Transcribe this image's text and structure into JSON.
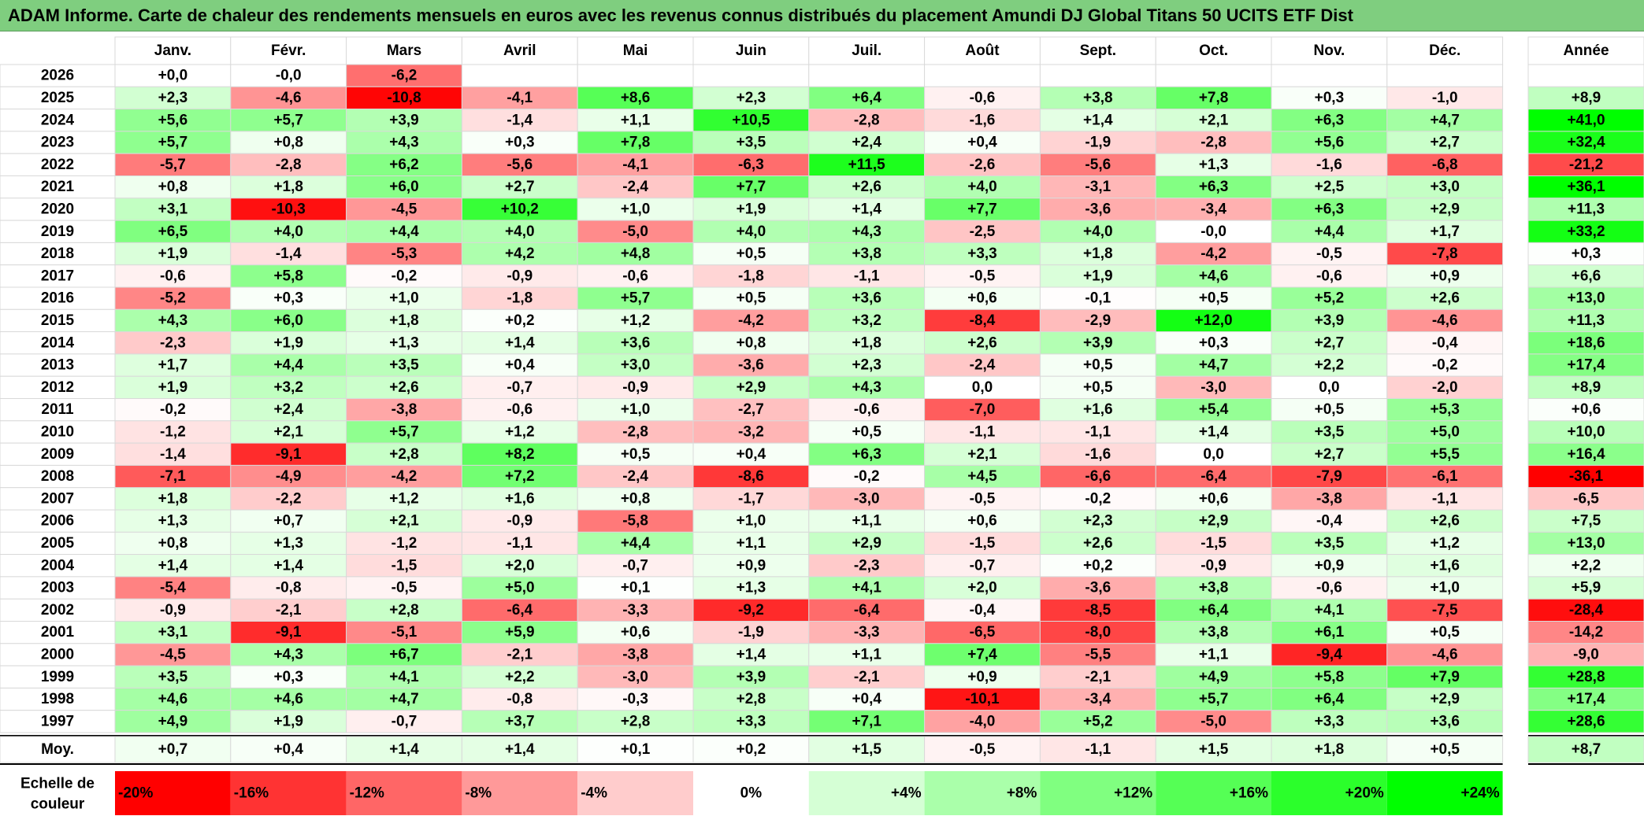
{
  "title": "ADAM Informe. Carte de chaleur des rendements mensuels en euros avec les revenus connus distribués du placement Amundi DJ Global Titans 50 UCITS ETF Dist",
  "chart_data": {
    "type": "heatmap",
    "months": [
      "Janv.",
      "Févr.",
      "Mars",
      "Avril",
      "Mai",
      "Juin",
      "Juil.",
      "Août",
      "Sept.",
      "Oct.",
      "Nov.",
      "Déc."
    ],
    "year_header": "Année",
    "avg_label": "Moy.",
    "rows": [
      {
        "year": "2026",
        "values": [
          "+0,0",
          "-0,0",
          "-6,2",
          "",
          "",
          "",
          "",
          "",
          "",
          "",
          "",
          ""
        ],
        "annual": ""
      },
      {
        "year": "2025",
        "values": [
          "+2,3",
          "-4,6",
          "-10,8",
          "-4,1",
          "+8,6",
          "+2,3",
          "+6,4",
          "-0,6",
          "+3,8",
          "+7,8",
          "+0,3",
          "-1,0"
        ],
        "annual": "+8,9"
      },
      {
        "year": "2024",
        "values": [
          "+5,6",
          "+5,7",
          "+3,9",
          "-1,4",
          "+1,1",
          "+10,5",
          "-2,8",
          "-1,6",
          "+1,4",
          "+2,1",
          "+6,3",
          "+4,7"
        ],
        "annual": "+41,0"
      },
      {
        "year": "2023",
        "values": [
          "+5,7",
          "+0,8",
          "+4,3",
          "+0,3",
          "+7,8",
          "+3,5",
          "+2,4",
          "+0,4",
          "-1,9",
          "-2,8",
          "+5,6",
          "+2,7"
        ],
        "annual": "+32,4"
      },
      {
        "year": "2022",
        "values": [
          "-5,7",
          "-2,8",
          "+6,2",
          "-5,6",
          "-4,1",
          "-6,3",
          "+11,5",
          "-2,6",
          "-5,6",
          "+1,3",
          "-1,6",
          "-6,8"
        ],
        "annual": "-21,2"
      },
      {
        "year": "2021",
        "values": [
          "+0,8",
          "+1,8",
          "+6,0",
          "+2,7",
          "-2,4",
          "+7,7",
          "+2,6",
          "+4,0",
          "-3,1",
          "+6,3",
          "+2,5",
          "+3,0"
        ],
        "annual": "+36,1"
      },
      {
        "year": "2020",
        "values": [
          "+3,1",
          "-10,3",
          "-4,5",
          "+10,2",
          "+1,0",
          "+1,9",
          "+1,4",
          "+7,7",
          "-3,6",
          "-3,4",
          "+6,3",
          "+2,9"
        ],
        "annual": "+11,3"
      },
      {
        "year": "2019",
        "values": [
          "+6,5",
          "+4,0",
          "+4,4",
          "+4,0",
          "-5,0",
          "+4,0",
          "+4,3",
          "-2,5",
          "+4,0",
          "-0,0",
          "+4,4",
          "+1,7"
        ],
        "annual": "+33,2"
      },
      {
        "year": "2018",
        "values": [
          "+1,9",
          "-1,4",
          "-5,3",
          "+4,2",
          "+4,8",
          "+0,5",
          "+3,8",
          "+3,3",
          "+1,8",
          "-4,2",
          "-0,5",
          "-7,8"
        ],
        "annual": "+0,3"
      },
      {
        "year": "2017",
        "values": [
          "-0,6",
          "+5,8",
          "-0,2",
          "-0,9",
          "-0,6",
          "-1,8",
          "-1,1",
          "-0,5",
          "+1,9",
          "+4,6",
          "-0,6",
          "+0,9"
        ],
        "annual": "+6,6"
      },
      {
        "year": "2016",
        "values": [
          "-5,2",
          "+0,3",
          "+1,0",
          "-1,8",
          "+5,7",
          "+0,5",
          "+3,6",
          "+0,6",
          "-0,1",
          "+0,5",
          "+5,2",
          "+2,6"
        ],
        "annual": "+13,0"
      },
      {
        "year": "2015",
        "values": [
          "+4,3",
          "+6,0",
          "+1,8",
          "+0,2",
          "+1,2",
          "-4,2",
          "+3,2",
          "-8,4",
          "-2,9",
          "+12,0",
          "+3,9",
          "-4,6"
        ],
        "annual": "+11,3"
      },
      {
        "year": "2014",
        "values": [
          "-2,3",
          "+1,9",
          "+1,3",
          "+1,4",
          "+3,6",
          "+0,8",
          "+1,8",
          "+2,6",
          "+3,9",
          "+0,3",
          "+2,7",
          "-0,4"
        ],
        "annual": "+18,6"
      },
      {
        "year": "2013",
        "values": [
          "+1,7",
          "+4,4",
          "+3,5",
          "+0,4",
          "+3,0",
          "-3,6",
          "+2,3",
          "-2,4",
          "+0,5",
          "+4,7",
          "+2,2",
          "-0,2"
        ],
        "annual": "+17,4"
      },
      {
        "year": "2012",
        "values": [
          "+1,9",
          "+3,2",
          "+2,6",
          "-0,7",
          "-0,9",
          "+2,9",
          "+4,3",
          "0,0",
          "+0,5",
          "-3,0",
          "0,0",
          "-2,0"
        ],
        "annual": "+8,9"
      },
      {
        "year": "2011",
        "values": [
          "-0,2",
          "+2,4",
          "-3,8",
          "-0,6",
          "+1,0",
          "-2,7",
          "-0,6",
          "-7,0",
          "+1,6",
          "+5,4",
          "+0,5",
          "+5,3"
        ],
        "annual": "+0,6"
      },
      {
        "year": "2010",
        "values": [
          "-1,2",
          "+2,1",
          "+5,7",
          "+1,2",
          "-2,8",
          "-3,2",
          "+0,5",
          "-1,1",
          "-1,1",
          "+1,4",
          "+3,5",
          "+5,0"
        ],
        "annual": "+10,0"
      },
      {
        "year": "2009",
        "values": [
          "-1,4",
          "-9,1",
          "+2,8",
          "+8,2",
          "+0,5",
          "+0,4",
          "+6,3",
          "+2,1",
          "-1,6",
          "0,0",
          "+2,7",
          "+5,5"
        ],
        "annual": "+16,4"
      },
      {
        "year": "2008",
        "values": [
          "-7,1",
          "-4,9",
          "-4,2",
          "+7,2",
          "-2,4",
          "-8,6",
          "-0,2",
          "+4,5",
          "-6,6",
          "-6,4",
          "-7,9",
          "-6,1"
        ],
        "annual": "-36,1"
      },
      {
        "year": "2007",
        "values": [
          "+1,8",
          "-2,2",
          "+1,2",
          "+1,6",
          "+0,8",
          "-1,7",
          "-3,0",
          "-0,5",
          "-0,2",
          "+0,6",
          "-3,8",
          "-1,1"
        ],
        "annual": "-6,5"
      },
      {
        "year": "2006",
        "values": [
          "+1,3",
          "+0,7",
          "+2,1",
          "-0,9",
          "-5,8",
          "+1,0",
          "+1,1",
          "+0,6",
          "+2,3",
          "+2,9",
          "-0,4",
          "+2,6"
        ],
        "annual": "+7,5"
      },
      {
        "year": "2005",
        "values": [
          "+0,8",
          "+1,3",
          "-1,2",
          "-1,1",
          "+4,4",
          "+1,1",
          "+2,9",
          "-1,5",
          "+2,6",
          "-1,5",
          "+3,5",
          "+1,2"
        ],
        "annual": "+13,0"
      },
      {
        "year": "2004",
        "values": [
          "+1,4",
          "+1,4",
          "-1,5",
          "+2,0",
          "-0,7",
          "+0,9",
          "-2,3",
          "-0,7",
          "+0,2",
          "-0,9",
          "+0,9",
          "+1,6"
        ],
        "annual": "+2,2"
      },
      {
        "year": "2003",
        "values": [
          "-5,4",
          "-0,8",
          "-0,5",
          "+5,0",
          "+0,1",
          "+1,3",
          "+4,1",
          "+2,0",
          "-3,6",
          "+3,8",
          "-0,6",
          "+1,0"
        ],
        "annual": "+5,9"
      },
      {
        "year": "2002",
        "values": [
          "-0,9",
          "-2,1",
          "+2,8",
          "-6,4",
          "-3,3",
          "-9,2",
          "-6,4",
          "-0,4",
          "-8,5",
          "+6,4",
          "+4,1",
          "-7,5"
        ],
        "annual": "-28,4"
      },
      {
        "year": "2001",
        "values": [
          "+3,1",
          "-9,1",
          "-5,1",
          "+5,9",
          "+0,6",
          "-1,9",
          "-3,3",
          "-6,5",
          "-8,0",
          "+3,8",
          "+6,1",
          "+0,5"
        ],
        "annual": "-14,2"
      },
      {
        "year": "2000",
        "values": [
          "-4,5",
          "+4,3",
          "+6,7",
          "-2,1",
          "-3,8",
          "+1,4",
          "+1,1",
          "+7,4",
          "-5,5",
          "+1,1",
          "-9,4",
          "-4,6"
        ],
        "annual": "-9,0"
      },
      {
        "year": "1999",
        "values": [
          "+3,5",
          "+0,3",
          "+4,1",
          "+2,2",
          "-3,0",
          "+3,9",
          "-2,1",
          "+0,9",
          "-2,1",
          "+4,9",
          "+5,8",
          "+7,9"
        ],
        "annual": "+28,8"
      },
      {
        "year": "1998",
        "values": [
          "+4,6",
          "+4,6",
          "+4,7",
          "-0,8",
          "-0,3",
          "+2,8",
          "+0,4",
          "-10,1",
          "-3,4",
          "+5,7",
          "+6,4",
          "+2,9"
        ],
        "annual": "+17,4"
      },
      {
        "year": "1997",
        "values": [
          "+4,9",
          "+1,9",
          "-0,7",
          "+3,7",
          "+2,8",
          "+3,3",
          "+7,1",
          "-4,0",
          "+5,2",
          "-5,0",
          "+3,3",
          "+3,6"
        ],
        "annual": "+28,6"
      }
    ],
    "averages": [
      "+0,7",
      "+0,4",
      "+1,4",
      "+1,4",
      "+0,1",
      "+0,2",
      "+1,5",
      "-0,5",
      "-1,1",
      "+1,5",
      "+1,8",
      "+0,5"
    ],
    "average_annual": "+8,7",
    "scale_label": [
      "Echelle de",
      "couleur"
    ],
    "scale": [
      "-20%",
      "-16%",
      "-12%",
      "-8%",
      "-4%",
      "0%",
      "+4%",
      "+8%",
      "+12%",
      "+16%",
      "+20%",
      "+24%"
    ],
    "colors": {
      "negative": "#ff0000",
      "positive": "#00ff00",
      "neutral": "#ffffff",
      "title_bar": "#7fce7f"
    }
  }
}
